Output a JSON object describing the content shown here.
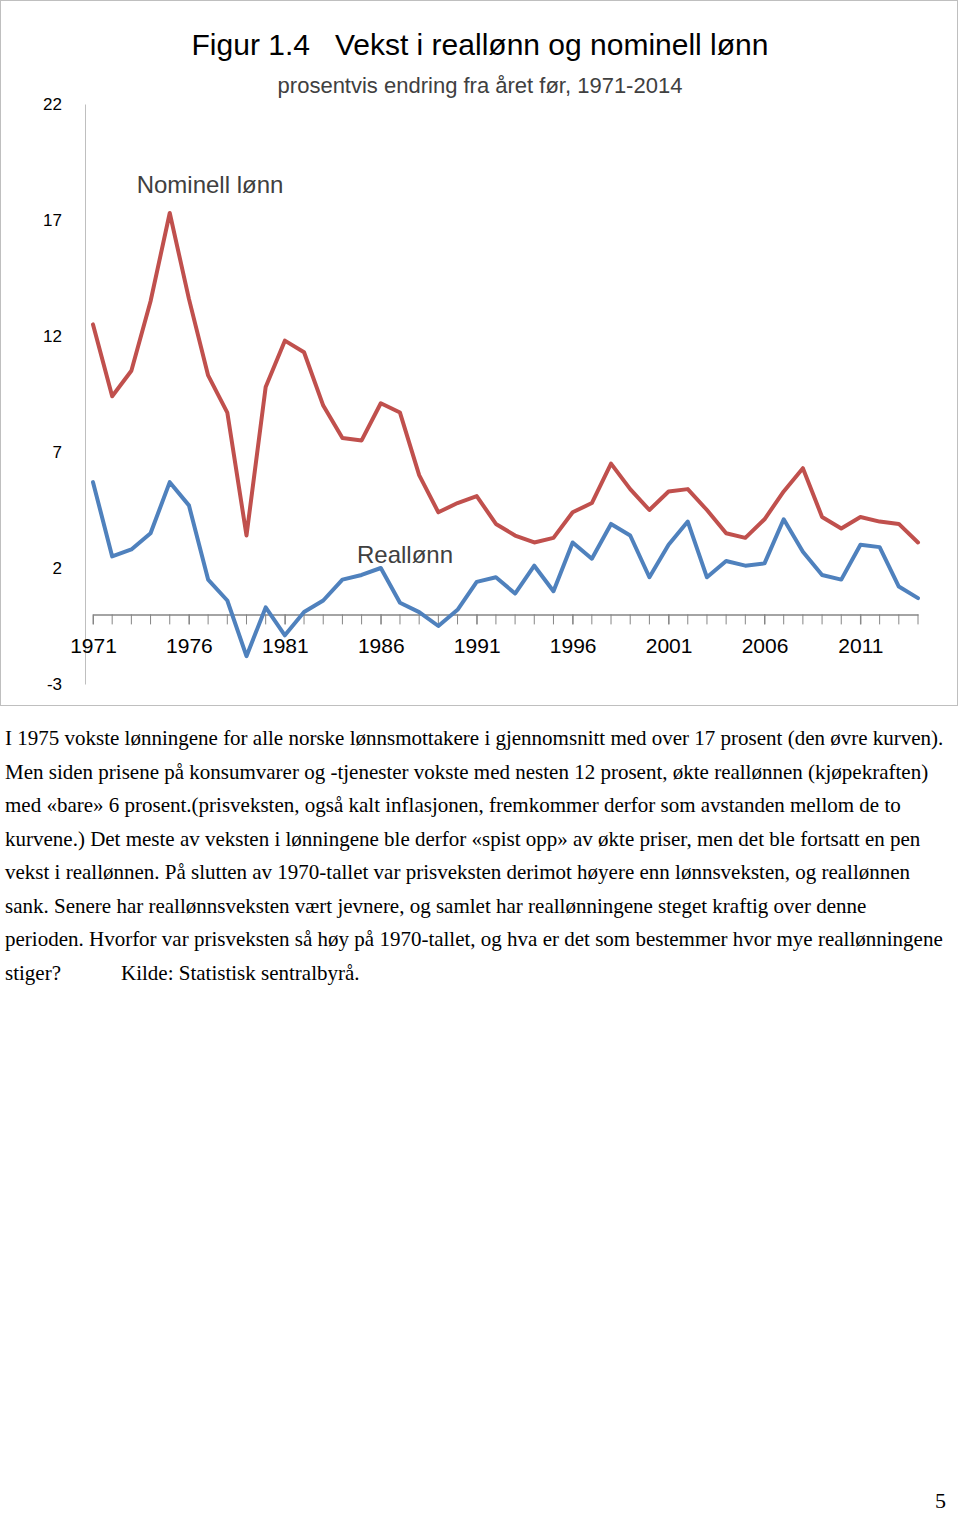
{
  "chart_data": {
    "type": "line",
    "title": "Figur 1.4   Vekst i reallønn og nominell lønn",
    "subtitle": "prosentvis endring fra året før, 1971-2014",
    "x": [
      1971,
      1972,
      1973,
      1974,
      1975,
      1976,
      1977,
      1978,
      1979,
      1980,
      1981,
      1982,
      1983,
      1984,
      1985,
      1986,
      1987,
      1988,
      1989,
      1990,
      1991,
      1992,
      1993,
      1994,
      1995,
      1996,
      1997,
      1998,
      1999,
      2000,
      2001,
      2002,
      2003,
      2004,
      2005,
      2006,
      2007,
      2008,
      2009,
      2010,
      2011,
      2012,
      2013,
      2014
    ],
    "xlim": [
      1971,
      2014
    ],
    "xticks": [
      1971,
      1976,
      1981,
      1986,
      1991,
      1996,
      2001,
      2006,
      2011
    ],
    "ylim": [
      -3,
      22
    ],
    "yticks": [
      -3,
      2,
      7,
      12,
      17,
      22
    ],
    "grid": false,
    "series": [
      {
        "name": "Nominell lønn",
        "color": "#c0504d",
        "values": [
          12.5,
          9.4,
          10.5,
          13.5,
          17.3,
          13.6,
          10.3,
          8.7,
          3.4,
          9.8,
          11.8,
          11.3,
          9.0,
          7.6,
          7.5,
          9.1,
          8.7,
          6.0,
          4.4,
          4.8,
          5.1,
          3.9,
          3.4,
          3.1,
          3.3,
          4.4,
          4.8,
          6.5,
          5.4,
          4.5,
          5.3,
          5.4,
          4.5,
          3.5,
          3.3,
          4.1,
          5.3,
          6.3,
          4.2,
          3.7,
          4.2,
          4.0,
          3.9,
          3.1
        ]
      },
      {
        "name": "Reallønn",
        "color": "#4f81bd",
        "values": [
          5.7,
          2.5,
          2.8,
          3.5,
          5.7,
          4.7,
          1.5,
          0.6,
          -1.8,
          0.3,
          -0.9,
          0.1,
          0.6,
          1.5,
          1.7,
          2.0,
          0.5,
          0.1,
          -0.5,
          0.2,
          1.4,
          1.6,
          0.9,
          2.1,
          1.0,
          3.1,
          2.4,
          3.9,
          3.4,
          1.6,
          3.0,
          4.0,
          1.6,
          2.3,
          2.1,
          2.2,
          4.1,
          2.7,
          1.7,
          1.5,
          3.0,
          2.9,
          1.2,
          0.7
        ]
      }
    ]
  },
  "caption": "I 1975 vokste lønningene for alle norske lønnsmottakere i gjennomsnitt med over 17 prosent (den øvre kurven). Men siden prisene på konsumvarer og -tjenester vokste med nesten 12 prosent, økte reallønnen (kjøpekraften) med «bare» 6 prosent.(prisveksten, også kalt inflasjonen, fremkommer derfor som avstanden mellom de to kurvene.) Det meste av veksten i lønningene ble derfor «spist opp» av økte priser, men det ble fortsatt en pen vekst i reallønnen. På slutten av 1970-tallet var prisveksten derimot høyere enn lønnsveksten, og reallønnen sank. Senere har reallønnsveksten vært jevnere, og samlet har reallønningene steget kraftig over denne perioden. Hvorfor var prisveksten så høy på 1970-tallet, og hva er det som bestemmer hvor mye reallønningene stiger?",
  "source": "Kilde: Statistisk sentralbyrå.",
  "page_number": "5"
}
